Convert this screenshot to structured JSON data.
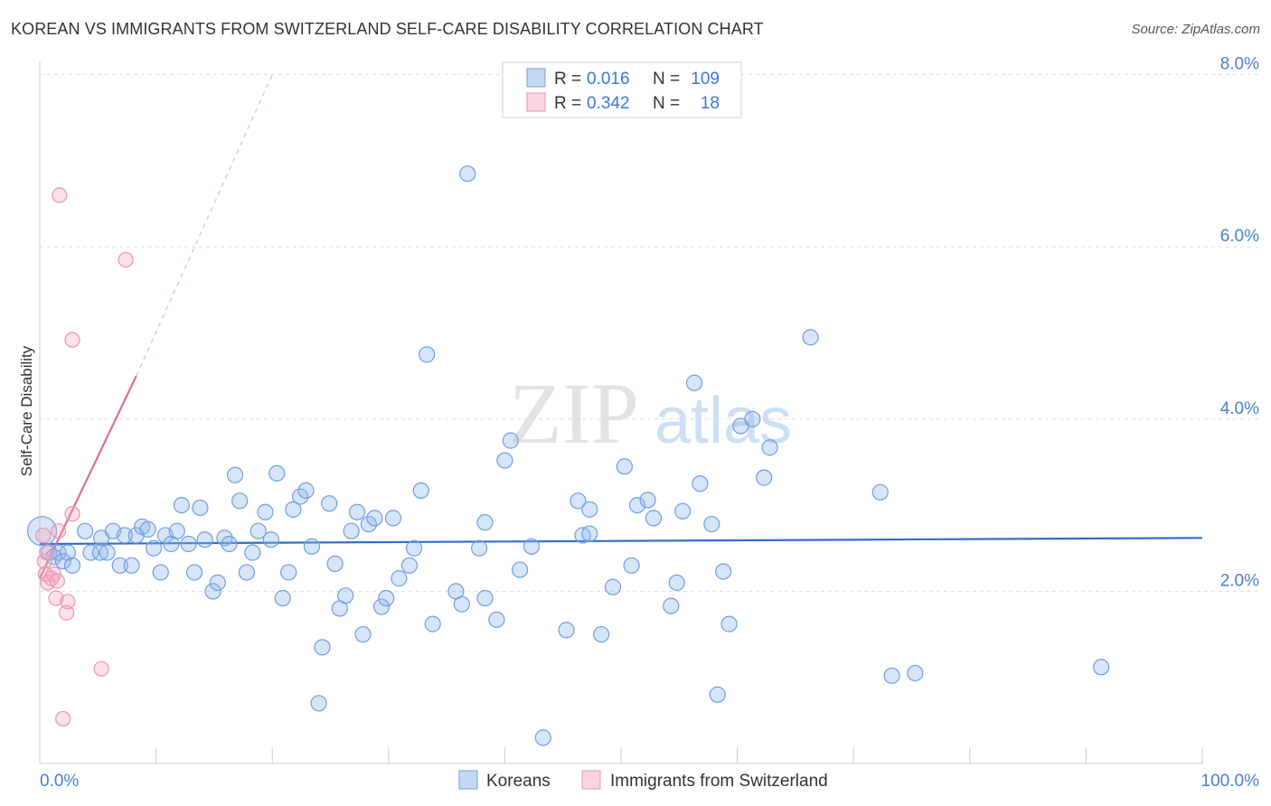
{
  "title": "KOREAN VS IMMIGRANTS FROM SWITZERLAND SELF-CARE DISABILITY CORRELATION CHART",
  "source": "Source: ZipAtlas.com",
  "watermark": {
    "zip": "ZIP",
    "atlas": "atlas"
  },
  "colors": {
    "blue_fill": "rgba(140,180,235,0.35)",
    "blue_stroke": "#6f9ee0",
    "blue_line": "#2f6fca",
    "pink_fill": "rgba(245,170,195,0.35)",
    "pink_stroke": "#e995b2",
    "pink_line": "#e06b95",
    "axis_text": "#4a7fd0",
    "grid": "#dddddd"
  },
  "legend": {
    "rows": [
      {
        "r_label": "R =",
        "r_value": "0.016",
        "n_label": "N =",
        "n_value": "109"
      },
      {
        "r_label": "R =",
        "r_value": "0.342",
        "n_label": "N =",
        "n_value": "18"
      }
    ]
  },
  "chart_data": {
    "type": "scatter",
    "title": "KOREAN VS IMMIGRANTS FROM SWITZERLAND SELF-CARE DISABILITY CORRELATION CHART",
    "xlabel": "",
    "ylabel": "Self-Care Disability",
    "xlim": [
      0,
      100
    ],
    "ylim": [
      0,
      8.0
    ],
    "x_tick_labels": [
      "0.0%",
      "100.0%"
    ],
    "y_ticks": [
      2.0,
      4.0,
      6.0,
      8.0
    ],
    "y_tick_labels": [
      "2.0%",
      "4.0%",
      "6.0%",
      "8.0%"
    ],
    "grid": "horizontal dashed",
    "legend_position": "top-center",
    "series": [
      {
        "name": "Koreans",
        "color": "#6f9ee0",
        "trend": {
          "x": [
            0,
            100
          ],
          "y": [
            2.55,
            2.62
          ]
        },
        "points": [
          [
            0.2,
            2.7
          ],
          [
            0.8,
            2.45
          ],
          [
            1.2,
            2.4
          ],
          [
            1.6,
            2.45
          ],
          [
            2.0,
            2.35
          ],
          [
            2.4,
            2.45
          ],
          [
            2.8,
            2.3
          ],
          [
            3.9,
            2.7
          ],
          [
            4.4,
            2.45
          ],
          [
            5.2,
            2.45
          ],
          [
            5.3,
            2.62
          ],
          [
            5.8,
            2.45
          ],
          [
            6.3,
            2.7
          ],
          [
            6.9,
            2.3
          ],
          [
            7.3,
            2.65
          ],
          [
            7.9,
            2.3
          ],
          [
            8.3,
            2.65
          ],
          [
            8.8,
            2.75
          ],
          [
            9.3,
            2.72
          ],
          [
            9.8,
            2.5
          ],
          [
            10.4,
            2.22
          ],
          [
            10.8,
            2.65
          ],
          [
            11.3,
            2.55
          ],
          [
            11.8,
            2.7
          ],
          [
            12.2,
            3.0
          ],
          [
            12.8,
            2.55
          ],
          [
            13.3,
            2.22
          ],
          [
            13.8,
            2.97
          ],
          [
            14.2,
            2.6
          ],
          [
            14.9,
            2.0
          ],
          [
            15.3,
            2.1
          ],
          [
            15.9,
            2.62
          ],
          [
            16.3,
            2.55
          ],
          [
            16.8,
            3.35
          ],
          [
            17.2,
            3.05
          ],
          [
            17.8,
            2.22
          ],
          [
            18.3,
            2.45
          ],
          [
            18.8,
            2.7
          ],
          [
            19.4,
            2.92
          ],
          [
            19.9,
            2.6
          ],
          [
            20.4,
            3.37
          ],
          [
            20.9,
            1.92
          ],
          [
            21.4,
            2.22
          ],
          [
            21.8,
            2.95
          ],
          [
            22.4,
            3.1
          ],
          [
            22.9,
            3.17
          ],
          [
            23.4,
            2.52
          ],
          [
            24.0,
            0.7
          ],
          [
            24.3,
            1.35
          ],
          [
            24.9,
            3.02
          ],
          [
            25.4,
            2.32
          ],
          [
            25.8,
            1.8
          ],
          [
            26.3,
            1.95
          ],
          [
            26.8,
            2.7
          ],
          [
            27.3,
            2.92
          ],
          [
            27.8,
            1.5
          ],
          [
            28.3,
            2.78
          ],
          [
            28.8,
            2.85
          ],
          [
            29.4,
            1.82
          ],
          [
            29.8,
            1.92
          ],
          [
            30.4,
            2.85
          ],
          [
            30.9,
            2.15
          ],
          [
            31.8,
            2.3
          ],
          [
            32.2,
            2.5
          ],
          [
            32.8,
            3.17
          ],
          [
            33.3,
            4.75
          ],
          [
            33.8,
            1.62
          ],
          [
            35.8,
            2.0
          ],
          [
            36.3,
            1.85
          ],
          [
            36.8,
            6.85
          ],
          [
            37.8,
            2.5
          ],
          [
            38.3,
            2.8
          ],
          [
            38.3,
            1.92
          ],
          [
            39.3,
            1.67
          ],
          [
            40.0,
            3.52
          ],
          [
            40.5,
            3.75
          ],
          [
            41.3,
            2.25
          ],
          [
            42.3,
            2.52
          ],
          [
            43.3,
            0.3
          ],
          [
            45.3,
            1.55
          ],
          [
            46.3,
            3.05
          ],
          [
            46.7,
            2.65
          ],
          [
            47.3,
            2.67
          ],
          [
            47.3,
            2.95
          ],
          [
            48.3,
            1.5
          ],
          [
            49.3,
            2.05
          ],
          [
            50.3,
            3.45
          ],
          [
            50.9,
            2.3
          ],
          [
            51.4,
            3.0
          ],
          [
            52.3,
            3.06
          ],
          [
            52.8,
            2.85
          ],
          [
            54.3,
            1.83
          ],
          [
            54.8,
            2.1
          ],
          [
            55.3,
            2.93
          ],
          [
            56.3,
            4.42
          ],
          [
            56.8,
            3.25
          ],
          [
            57.8,
            2.78
          ],
          [
            58.3,
            0.8
          ],
          [
            58.8,
            2.23
          ],
          [
            59.3,
            1.62
          ],
          [
            60.3,
            3.92
          ],
          [
            61.3,
            4.0
          ],
          [
            62.3,
            3.32
          ],
          [
            62.8,
            3.67
          ],
          [
            66.3,
            4.95
          ],
          [
            72.3,
            3.15
          ],
          [
            73.3,
            1.02
          ],
          [
            75.3,
            1.05
          ],
          [
            91.3,
            1.12
          ]
        ]
      },
      {
        "name": "Immigrants from Switzerland",
        "color": "#e995b2",
        "trend": {
          "x": [
            0,
            8.3
          ],
          "y": [
            2.15,
            4.5
          ],
          "extended_to": [
            20,
            8.0
          ]
        },
        "points": [
          [
            0.3,
            2.65
          ],
          [
            0.4,
            2.35
          ],
          [
            0.5,
            2.2
          ],
          [
            0.6,
            2.45
          ],
          [
            0.7,
            2.1
          ],
          [
            1.0,
            2.15
          ],
          [
            1.2,
            2.2
          ],
          [
            1.4,
            1.92
          ],
          [
            1.5,
            2.12
          ],
          [
            1.6,
            2.7
          ],
          [
            1.7,
            6.6
          ],
          [
            2.0,
            0.52
          ],
          [
            2.3,
            1.75
          ],
          [
            2.4,
            1.88
          ],
          [
            2.8,
            2.9
          ],
          [
            2.8,
            4.92
          ],
          [
            5.3,
            1.1
          ],
          [
            7.4,
            5.85
          ]
        ]
      }
    ]
  },
  "bottom_legend": [
    {
      "label": "Koreans"
    },
    {
      "label": "Immigrants from Switzerland"
    }
  ]
}
